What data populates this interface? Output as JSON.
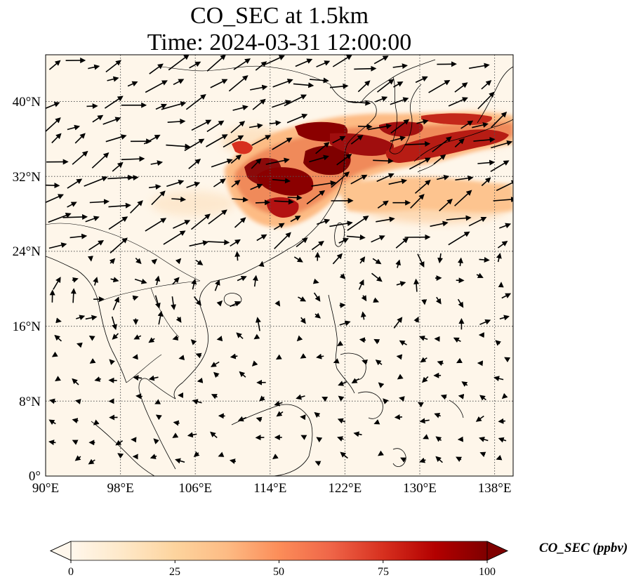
{
  "title": {
    "line1": "CO_SEC at 1.5km",
    "line2": "Time: 2024-03-31 12:00:00"
  },
  "map": {
    "projection": "PlateCarree",
    "lon_range": [
      90,
      140
    ],
    "lat_range": [
      0,
      45
    ],
    "lon_ticks": [
      "90°E",
      "98°E",
      "106°E",
      "114°E",
      "122°E",
      "130°E",
      "138°E"
    ],
    "lat_ticks": [
      "0°",
      "8°N",
      "16°N",
      "24°N",
      "32°N",
      "40°N"
    ],
    "gridlines": "dotted",
    "overlay": "wind vectors (arrows)"
  },
  "colorbar": {
    "label": "CO_SEC (ppbv)",
    "ticks": [
      "0",
      "25",
      "50",
      "75",
      "100"
    ],
    "range": [
      0,
      100
    ],
    "extend": "both",
    "colormap": "OrRd",
    "colors": [
      "#fff7ec",
      "#fee8c8",
      "#fdd49e",
      "#fdbb84",
      "#fc8d59",
      "#ef6548",
      "#d7301f",
      "#b30000",
      "#7f0000"
    ]
  }
}
